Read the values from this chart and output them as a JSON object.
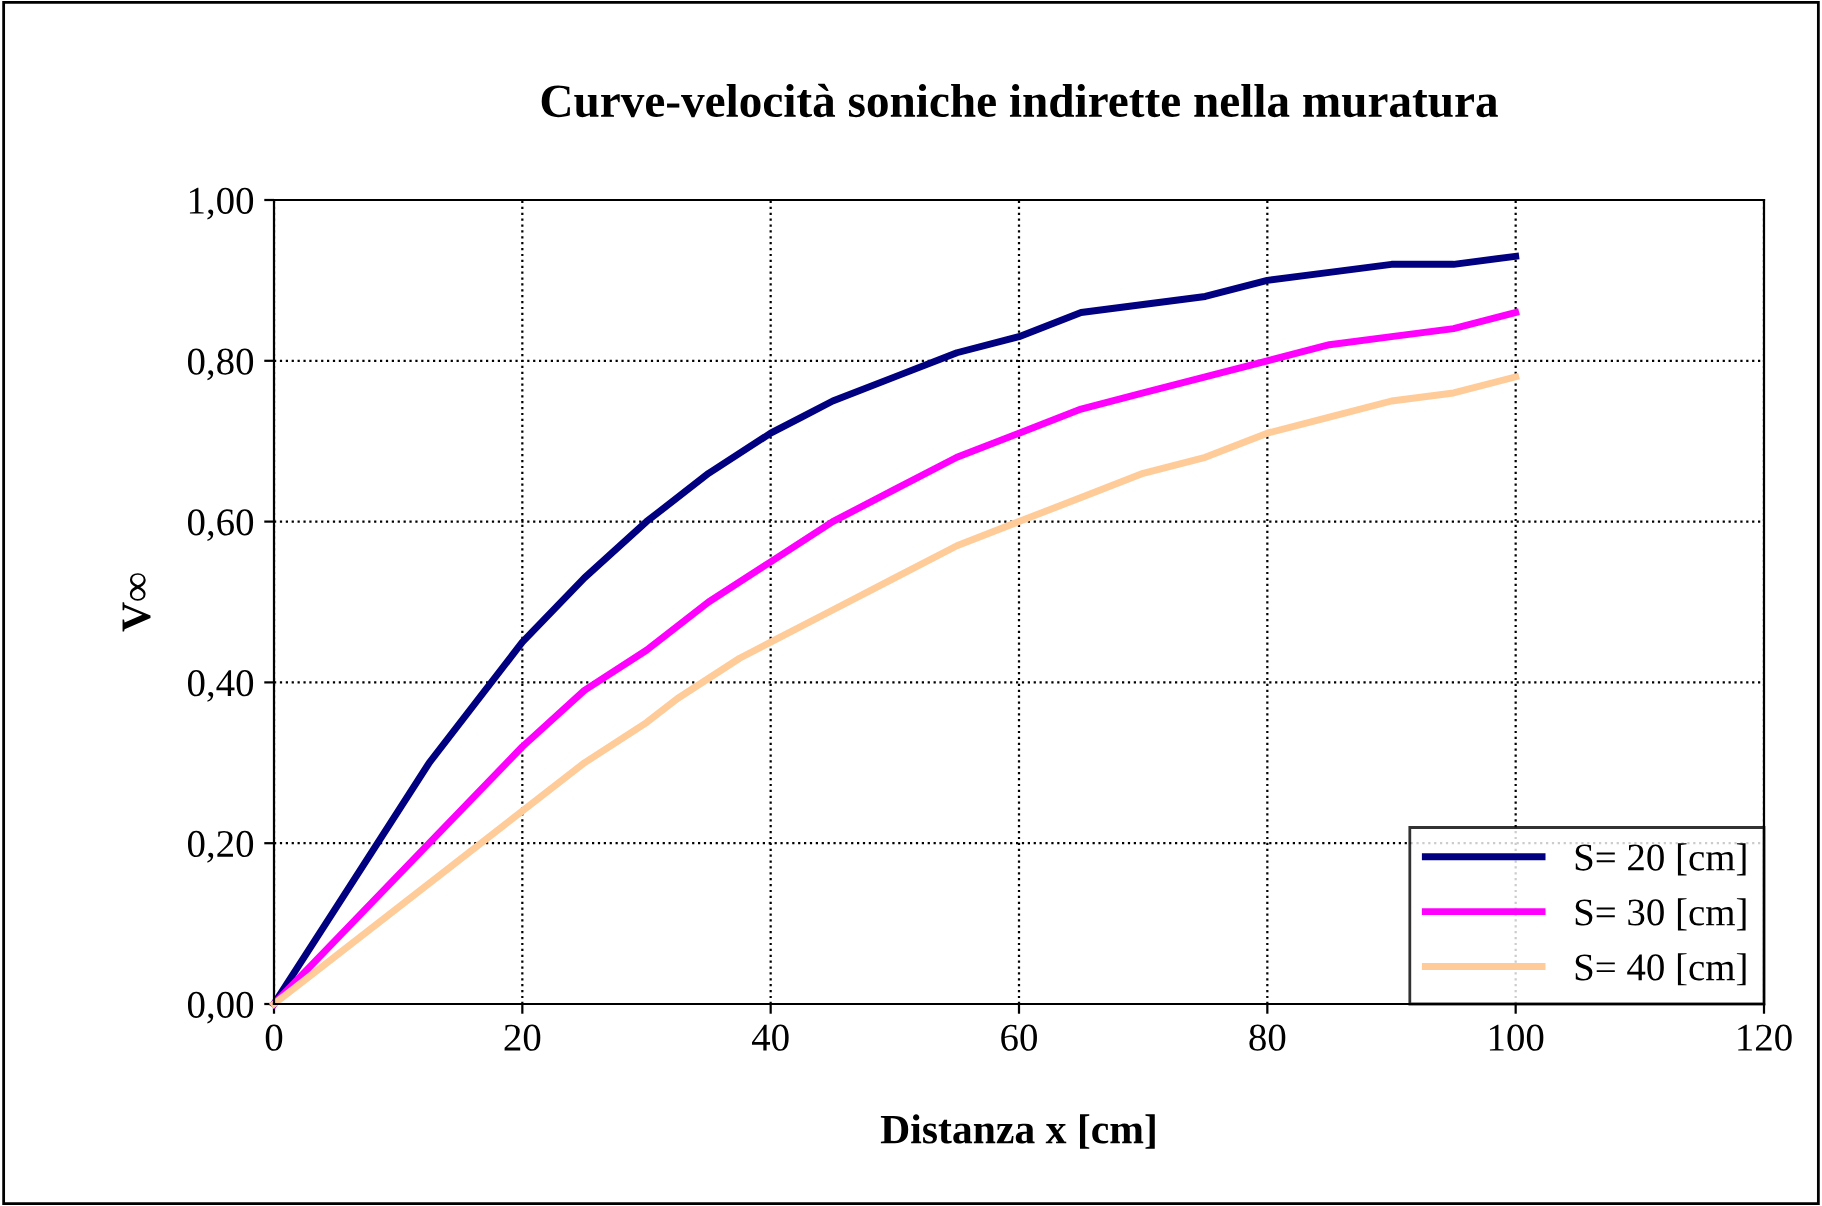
{
  "chart_data": {
    "type": "line",
    "title": "Curve-velocità soniche indirette nella muratura",
    "xlabel": "Distanza x [cm]",
    "ylabel": "V∞",
    "xlim": [
      0,
      120
    ],
    "xticks": [
      0,
      20,
      40,
      60,
      80,
      100,
      120
    ],
    "ylim": [
      0,
      1
    ],
    "yticks": [
      {
        "value": 0,
        "label": "0,00"
      },
      {
        "value": 0.2,
        "label": "0,20"
      },
      {
        "value": 0.4,
        "label": "0,40"
      },
      {
        "value": 0.6,
        "label": "0,60"
      },
      {
        "value": 0.8,
        "label": "0,80"
      },
      {
        "value": 1,
        "label": "1,00"
      }
    ],
    "grid": true,
    "legend": "bottom right",
    "marker": "none",
    "line_style": "solid",
    "series": [
      {
        "name": "S= 20 [cm]",
        "color": "#000080",
        "x": [
          0,
          5,
          12.5,
          20,
          25,
          30,
          35,
          40,
          42.5,
          45,
          50,
          55,
          60,
          65,
          70,
          75,
          80,
          85,
          90,
          95,
          100
        ],
        "values": [
          0,
          0.12,
          0.3,
          0.45,
          0.53,
          0.6,
          0.66,
          0.71,
          0.73,
          0.75,
          0.78,
          0.81,
          0.83,
          0.86,
          0.87,
          0.88,
          0.9,
          0.91,
          0.92,
          0.92,
          0.93
        ]
      },
      {
        "name": "S= 30 [cm]",
        "color": "#ff00ff",
        "x": [
          0,
          5,
          12.5,
          20,
          25,
          30,
          35,
          40,
          45,
          50,
          55,
          60,
          65,
          70,
          75,
          80,
          85,
          90,
          95,
          100
        ],
        "values": [
          0,
          0.08,
          0.2,
          0.32,
          0.39,
          0.44,
          0.5,
          0.55,
          0.6,
          0.64,
          0.68,
          0.71,
          0.74,
          0.76,
          0.78,
          0.8,
          0.82,
          0.83,
          0.84,
          0.86
        ]
      },
      {
        "name": "S= 40 [cm]",
        "color": "#ffcc99",
        "x": [
          0,
          5,
          10,
          20,
          25,
          30,
          32.5,
          37.5,
          40,
          45,
          50,
          55,
          60,
          65,
          70,
          75,
          80,
          85,
          90,
          95,
          100
        ],
        "values": [
          0,
          0.06,
          0.12,
          0.24,
          0.3,
          0.35,
          0.38,
          0.43,
          0.45,
          0.49,
          0.53,
          0.57,
          0.6,
          0.63,
          0.66,
          0.68,
          0.71,
          0.73,
          0.75,
          0.76,
          0.78
        ]
      }
    ]
  }
}
